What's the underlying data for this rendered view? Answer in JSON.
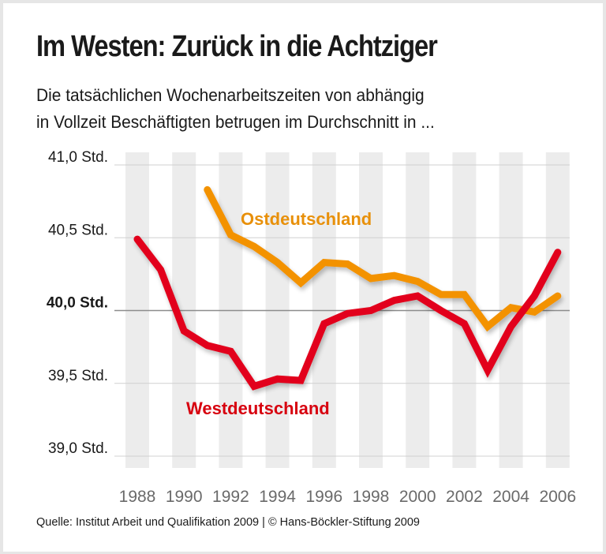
{
  "title": "Im Westen: Zurück in die Achtziger",
  "subtitle_lines": [
    "Die tatsächlichen Wochenarbeitszeiten von abhängig",
    "in Vollzeit Beschäftigten betrugen im Durchschnitt in ..."
  ],
  "source": "Quelle: Institut Arbeit und Qualifikation 2009 | © Hans-Böckler-Stiftung 2009",
  "chart_data": {
    "type": "line",
    "title": "Im Westen: Zurück in die Achtziger",
    "subtitle": "Die tatsächlichen Wochenarbeitszeiten von abhängig in Vollzeit Beschäftigten betrugen im Durchschnitt in ...",
    "xlabel": "",
    "ylabel": "",
    "x": [
      1988,
      1989,
      1990,
      1991,
      1992,
      1993,
      1994,
      1995,
      1996,
      1997,
      1998,
      1999,
      2000,
      2001,
      2002,
      2003,
      2004,
      2005,
      2006
    ],
    "xticks": [
      "1988",
      "1990",
      "1992",
      "1994",
      "1996",
      "1998",
      "2000",
      "2002",
      "2004",
      "2006"
    ],
    "yticks": [
      {
        "value": 41.0,
        "label": "41,0 Std.",
        "emphasis": false
      },
      {
        "value": 40.5,
        "label": "40,5 Std.",
        "emphasis": false
      },
      {
        "value": 40.0,
        "label": "40,0 Std.",
        "emphasis": true
      },
      {
        "value": 39.5,
        "label": "39,5 Std.",
        "emphasis": false
      },
      {
        "value": 39.0,
        "label": "39,0 Std.",
        "emphasis": false
      }
    ],
    "ylim": [
      39.0,
      41.0
    ],
    "grid": true,
    "legend": "inline labels",
    "series": [
      {
        "name": "Westdeutschland",
        "color": "#e2001a",
        "label_color": "#d7000f",
        "values": [
          40.49,
          40.28,
          39.86,
          39.76,
          39.72,
          39.48,
          39.53,
          39.52,
          39.91,
          39.98,
          40.0,
          40.07,
          40.1,
          40.0,
          39.91,
          39.59,
          39.89,
          40.1,
          40.4
        ]
      },
      {
        "name": "Ostdeutschland",
        "color": "#f39200",
        "label_color": "#e8900a",
        "values": [
          null,
          null,
          null,
          40.83,
          40.52,
          40.44,
          40.33,
          40.19,
          40.33,
          40.32,
          40.22,
          40.24,
          40.2,
          40.11,
          40.11,
          39.89,
          40.02,
          39.99,
          40.1
        ]
      }
    ]
  }
}
